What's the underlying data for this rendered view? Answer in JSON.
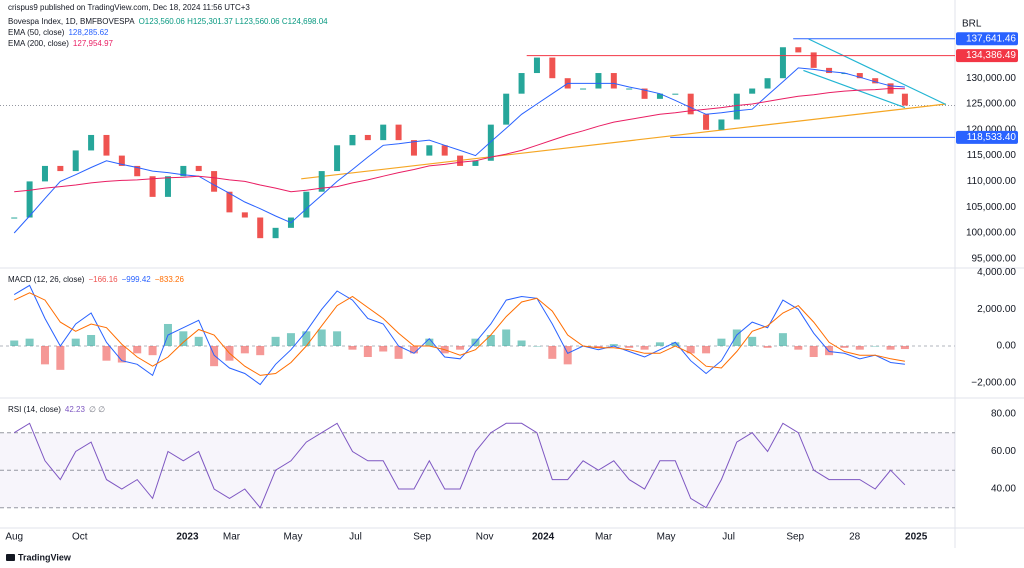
{
  "header": {
    "publisher": "crispus9 published on TradingView.com, Dec 18, 2024 11:56 UTC+3",
    "currency": "BRL",
    "footer": "TradingView"
  },
  "chart_data": [
    {
      "type": "price",
      "title": "Bovespa Index, 1D, BMFBOVESPA",
      "ohlc": "O123,560.06 H125,301.37 L123,560.06 C124,698.04",
      "x": [
        0,
        15,
        30,
        45,
        60,
        75,
        90,
        105,
        120,
        135,
        150,
        165,
        180,
        195,
        210,
        225,
        240,
        255,
        270,
        285,
        300,
        315,
        330,
        345,
        360,
        375,
        390,
        405,
        420,
        435,
        450,
        465,
        480,
        495,
        510,
        525,
        540,
        555,
        570,
        585,
        600,
        615,
        630,
        645,
        660,
        675,
        690,
        705,
        720,
        735,
        750,
        765,
        780,
        795,
        810,
        825,
        840,
        855,
        869
      ],
      "xlim": [
        -9,
        913
      ],
      "xticks": [
        {
          "value": 0,
          "label": "Aug"
        },
        {
          "value": 64,
          "label": "Oct"
        },
        {
          "value": 169,
          "label": "2023"
        },
        {
          "value": 212,
          "label": "Mar"
        },
        {
          "value": 272,
          "label": "May"
        },
        {
          "value": 333,
          "label": "Jul"
        },
        {
          "value": 398,
          "label": "Sep"
        },
        {
          "value": 459,
          "label": "Nov"
        },
        {
          "value": 516,
          "label": "2024"
        },
        {
          "value": 575,
          "label": "Mar"
        },
        {
          "value": 636,
          "label": "May"
        },
        {
          "value": 697,
          "label": "Jul"
        },
        {
          "value": 762,
          "label": "Sep"
        },
        {
          "value": 820,
          "label": "28"
        },
        {
          "value": 880,
          "label": "2025"
        }
      ],
      "ylim": [
        93217,
        141279
      ],
      "yticks": [
        {
          "value": 95000,
          "label": "95,000.00"
        },
        {
          "value": 100000,
          "label": "100,000.00"
        },
        {
          "value": 105000,
          "label": "105,000.00"
        },
        {
          "value": 110000,
          "label": "110,000.00"
        },
        {
          "value": 115000,
          "label": "115,000.00"
        },
        {
          "value": 120000,
          "label": "120,000.00"
        },
        {
          "value": 125000,
          "label": "125,000.00"
        },
        {
          "value": 130000,
          "label": "130,000.00"
        }
      ],
      "series": [
        {
          "color_up": "#26a69a",
          "color_down": "#ef5350",
          "values": [
            103000,
            110000,
            113000,
            112000,
            116000,
            119000,
            115000,
            113000,
            111000,
            107000,
            111000,
            113000,
            112000,
            108000,
            104000,
            103000,
            99000,
            101000,
            103000,
            108000,
            112000,
            117000,
            119000,
            118000,
            121000,
            118000,
            115000,
            117000,
            115000,
            113000,
            114000,
            121000,
            127000,
            131000,
            134000,
            130000,
            128000,
            128000,
            131000,
            128000,
            128000,
            126000,
            127000,
            127000,
            123000,
            120000,
            122000,
            127000,
            128000,
            130000,
            136000,
            135000,
            132000,
            131000,
            131000,
            130000,
            129000,
            127000,
            124698.04
          ]
        },
        {
          "name": "EMA (50, close)",
          "value_label": "128,285.62",
          "color": "#2962ff",
          "values": [
            100000,
            103300,
            106700,
            110000,
            111300,
            112700,
            114000,
            113300,
            112700,
            112000,
            111700,
            111300,
            111000,
            109300,
            107700,
            106000,
            104700,
            103300,
            102000,
            104700,
            107300,
            110000,
            112300,
            114700,
            117000,
            117300,
            117700,
            118000,
            117000,
            116000,
            115000,
            117700,
            120300,
            123000,
            125000,
            127000,
            129000,
            129000,
            129000,
            129000,
            128300,
            127700,
            127000,
            125700,
            124300,
            123000,
            123300,
            123700,
            124000,
            126700,
            129300,
            132000,
            131700,
            131300,
            131000,
            130200,
            129300,
            128500,
            128285.62
          ]
        },
        {
          "name": "EMA (200, close)",
          "value_label": "127,954.97",
          "color": "#e91e63",
          "values": [
            108000,
            108300,
            108700,
            109000,
            109300,
            109700,
            110000,
            110200,
            110300,
            110500,
            110700,
            110800,
            111000,
            110700,
            110300,
            110000,
            109300,
            108700,
            108000,
            108300,
            108700,
            109000,
            109700,
            110300,
            111000,
            111700,
            112300,
            113000,
            113300,
            113700,
            114000,
            114700,
            115300,
            116000,
            117000,
            118000,
            119000,
            119800,
            120700,
            121500,
            122000,
            122500,
            123000,
            123300,
            123700,
            124000,
            124300,
            124700,
            125000,
            125500,
            126000,
            126500,
            126800,
            127200,
            127500,
            127700,
            127800,
            128000,
            127954.97
          ]
        }
      ],
      "levels": [
        {
          "value": 137641.46,
          "label": "137,641.46",
          "color": "#2962ff",
          "x0": 760
        },
        {
          "value": 134386.49,
          "label": "134,386.49",
          "color": "#f23645",
          "x0": 500
        },
        {
          "value": 118533.4,
          "label": "118,533.40",
          "color": "#2962ff",
          "x0": 640
        }
      ],
      "trendlines": [
        {
          "color": "#f5a623",
          "x": [
            280,
            909
          ],
          "values": [
            110500,
            125000
          ]
        },
        {
          "color": "#22b5d3",
          "x": [
            775,
            909
          ],
          "values": [
            137600,
            124900
          ]
        },
        {
          "color": "#22b5d3",
          "x": [
            770,
            869
          ],
          "values": [
            131500,
            124300
          ]
        }
      ]
    },
    {
      "type": "macd",
      "title": "MACD (12, 26, close)",
      "ylim": [
        -2834,
        4251
      ],
      "yticks": [
        {
          "value": 4000,
          "label": "4,000.00"
        },
        {
          "value": 2000,
          "label": "2,000.00"
        },
        {
          "value": 0,
          "label": "0.00"
        },
        {
          "value": -2000,
          "label": "−2,000.00"
        }
      ],
      "series": [
        {
          "value_label": "−166.16",
          "color_up": "#26a69a",
          "color_down": "#ef5350",
          "values": [
            300,
            400,
            -1000,
            -1300,
            400,
            600,
            -800,
            -900,
            -400,
            -500,
            1200,
            800,
            500,
            -1100,
            -800,
            -400,
            -500,
            500,
            700,
            800,
            900,
            800,
            -200,
            -600,
            -300,
            -700,
            -400,
            400,
            -400,
            -200,
            400,
            600,
            900,
            300,
            0,
            -700,
            -1000,
            0,
            -100,
            100,
            -100,
            -200,
            200,
            200,
            -400,
            -400,
            400,
            900,
            500,
            -100,
            700,
            -200,
            -600,
            -500,
            -100,
            -200,
            0,
            -200,
            -166.16
          ]
        },
        {
          "value_label": "−999.42",
          "color": "#2962ff",
          "values": [
            2800,
            3300,
            1500,
            0,
            1200,
            1800,
            200,
            -800,
            -1000,
            -1600,
            600,
            1000,
            1400,
            -500,
            -1200,
            -1500,
            -2100,
            -1000,
            -200,
            800,
            2000,
            3000,
            2500,
            1500,
            1200,
            0,
            -400,
            400,
            -600,
            -700,
            200,
            1200,
            2500,
            2700,
            2600,
            1200,
            -400,
            0,
            -200,
            0,
            -300,
            -600,
            -200,
            200,
            -800,
            -1500,
            -800,
            600,
            1300,
            1000,
            2500,
            2000,
            700,
            -300,
            -400,
            -700,
            -500,
            -900,
            -999.42
          ]
        },
        {
          "value_label": "−833.26",
          "color": "#ff6d00",
          "values": [
            2500,
            2900,
            2500,
            1300,
            800,
            1200,
            1000,
            100,
            -600,
            -1100,
            -600,
            200,
            900,
            600,
            -400,
            -1100,
            -1600,
            -1500,
            -900,
            0,
            1100,
            2200,
            2700,
            2100,
            1500,
            700,
            0,
            0,
            -200,
            -500,
            -200,
            600,
            1600,
            2400,
            2600,
            1900,
            600,
            0,
            -100,
            -100,
            -200,
            -400,
            -400,
            0,
            -400,
            -1100,
            -1200,
            -300,
            800,
            1100,
            1800,
            2200,
            1300,
            200,
            -300,
            -500,
            -500,
            -700,
            -833.26
          ]
        }
      ]
    },
    {
      "type": "rsi",
      "title": "RSI (14, close)",
      "extra": "∅ ∅",
      "ylim": [
        19.2,
        88.5
      ],
      "yticks": [
        {
          "value": 80,
          "label": "80.00"
        },
        {
          "value": 60,
          "label": "60.00"
        },
        {
          "value": 40,
          "label": "40.00"
        }
      ],
      "bands": [
        30,
        70
      ],
      "midline": 50,
      "series": [
        {
          "value_label": "42.23",
          "color": "#7e57c2",
          "values": [
            70,
            75,
            55,
            45,
            60,
            65,
            45,
            40,
            45,
            35,
            60,
            55,
            60,
            40,
            35,
            40,
            30,
            50,
            55,
            65,
            70,
            75,
            60,
            55,
            55,
            40,
            40,
            55,
            40,
            40,
            60,
            70,
            75,
            75,
            70,
            45,
            45,
            55,
            50,
            55,
            45,
            40,
            55,
            55,
            35,
            30,
            45,
            65,
            70,
            60,
            75,
            70,
            50,
            45,
            45,
            45,
            40,
            50,
            42.23
          ]
        }
      ]
    }
  ]
}
